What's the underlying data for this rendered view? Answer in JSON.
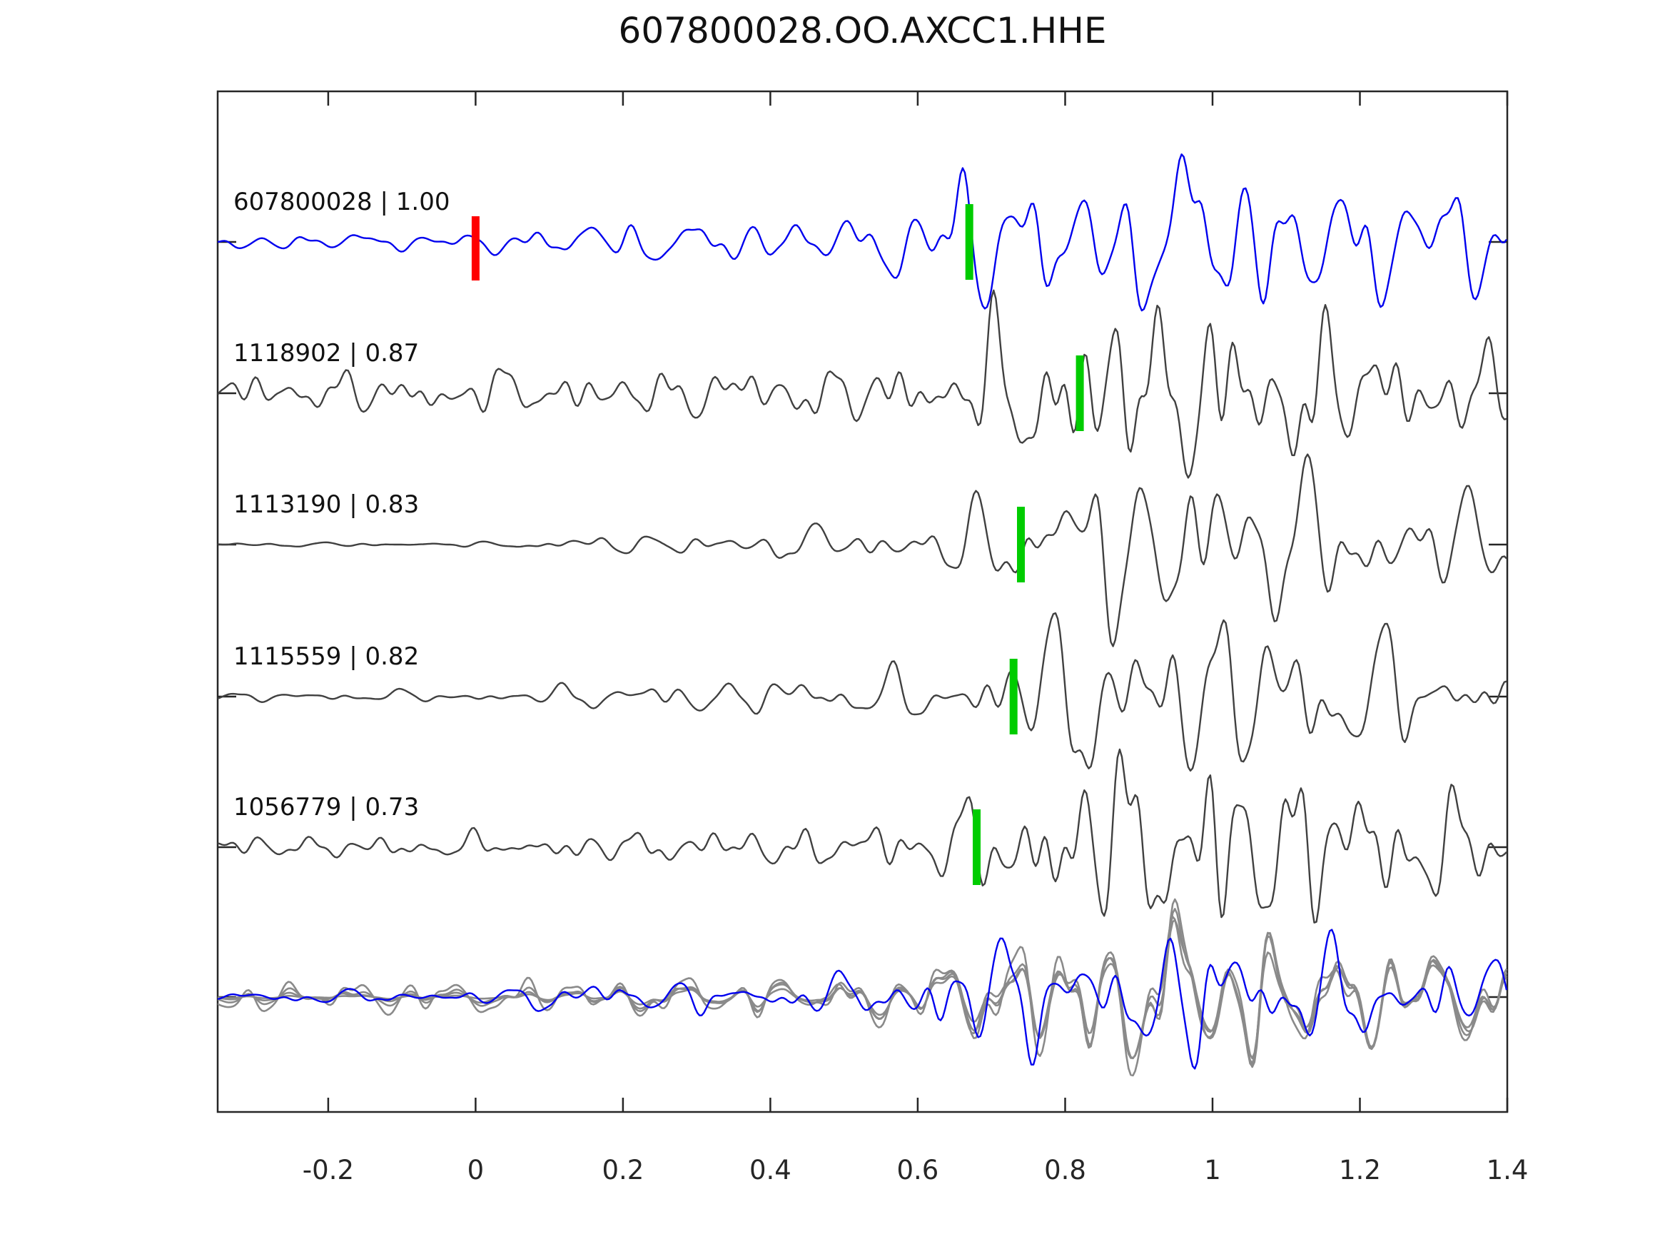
{
  "chart_data": {
    "type": "line",
    "title": "607800028.OO.AXCC1.HHE",
    "xlabel": "",
    "ylabel": "",
    "xlim": [
      -0.35,
      1.4
    ],
    "x_ticks": [
      -0.2,
      0,
      0.2,
      0.4,
      0.6,
      0.8,
      1,
      1.2,
      1.4
    ],
    "x_tick_labels": [
      "-0.2",
      "0",
      "0.2",
      "0.4",
      "0.6",
      "0.8",
      "1",
      "1.2",
      "1.4"
    ],
    "grid": false,
    "legend_position": "none",
    "axis_color": "#262626",
    "marker_colors": {
      "template_origin": "#ff0000",
      "pick": "#00cc00"
    },
    "traces": [
      {
        "id": "607800028",
        "label": "607800028 | 1.00",
        "correlation": 1.0,
        "color": "#0000ee",
        "row": 0,
        "seed": 20,
        "freq_profile": "signal",
        "origin_marker": {
          "x": 0.0,
          "color": "#ff0000"
        },
        "pick_marker": {
          "x": 0.67,
          "color": "#00cc00"
        },
        "envelope": [
          [
            -0.35,
            9
          ],
          [
            0,
            10
          ],
          [
            0.05,
            16
          ],
          [
            0.15,
            22
          ],
          [
            0.3,
            24
          ],
          [
            0.45,
            26
          ],
          [
            0.55,
            30
          ],
          [
            0.6,
            55
          ],
          [
            0.66,
            82
          ],
          [
            0.72,
            95
          ],
          [
            0.78,
            75
          ],
          [
            0.85,
            65
          ],
          [
            0.93,
            80
          ],
          [
            0.97,
            115
          ],
          [
            1.03,
            95
          ],
          [
            1.1,
            75
          ],
          [
            1.2,
            70
          ],
          [
            1.3,
            62
          ],
          [
            1.4,
            58
          ]
        ]
      },
      {
        "id": "1118902",
        "label": "1118902 | 0.87",
        "correlation": 0.87,
        "color": "#404040",
        "row": 1,
        "seed": 7,
        "freq_profile": "noisy",
        "pick_marker": {
          "x": 0.82,
          "color": "#00cc00"
        },
        "envelope": [
          [
            -0.35,
            20
          ],
          [
            0,
            22
          ],
          [
            0.2,
            24
          ],
          [
            0.4,
            26
          ],
          [
            0.55,
            30
          ],
          [
            0.65,
            50
          ],
          [
            0.72,
            75
          ],
          [
            0.8,
            92
          ],
          [
            0.9,
            95
          ],
          [
            1.0,
            90
          ],
          [
            1.1,
            85
          ],
          [
            1.2,
            60
          ],
          [
            1.3,
            50
          ],
          [
            1.4,
            42
          ]
        ]
      },
      {
        "id": "1113190",
        "label": "1113190 | 0.83",
        "correlation": 0.83,
        "color": "#404040",
        "row": 2,
        "seed": 13,
        "freq_profile": "signal",
        "pick_marker": {
          "x": 0.74,
          "color": "#00cc00"
        },
        "envelope": [
          [
            -0.35,
            2
          ],
          [
            0.05,
            3
          ],
          [
            0.12,
            8
          ],
          [
            0.25,
            12
          ],
          [
            0.4,
            16
          ],
          [
            0.55,
            22
          ],
          [
            0.65,
            40
          ],
          [
            0.72,
            55
          ],
          [
            0.8,
            80
          ],
          [
            0.9,
            100
          ],
          [
            1.0,
            105
          ],
          [
            1.1,
            85
          ],
          [
            1.2,
            70
          ],
          [
            1.3,
            55
          ],
          [
            1.4,
            48
          ]
        ]
      },
      {
        "id": "1115559",
        "label": "1115559 | 0.82",
        "correlation": 0.82,
        "color": "#404040",
        "row": 3,
        "seed": 5,
        "freq_profile": "signal",
        "pick_marker": {
          "x": 0.73,
          "color": "#00cc00"
        },
        "envelope": [
          [
            -0.35,
            5
          ],
          [
            0.05,
            7
          ],
          [
            0.15,
            14
          ],
          [
            0.3,
            18
          ],
          [
            0.45,
            22
          ],
          [
            0.6,
            30
          ],
          [
            0.7,
            50
          ],
          [
            0.78,
            82
          ],
          [
            0.88,
            95
          ],
          [
            1.0,
            100
          ],
          [
            1.1,
            88
          ],
          [
            1.2,
            70
          ],
          [
            1.3,
            55
          ],
          [
            1.4,
            48
          ]
        ]
      },
      {
        "id": "1056779",
        "label": "1056779 | 0.73",
        "correlation": 0.73,
        "color": "#404040",
        "row": 4,
        "seed": 29,
        "freq_profile": "noisy",
        "pick_marker": {
          "x": 0.68,
          "color": "#00cc00"
        },
        "envelope": [
          [
            -0.35,
            11
          ],
          [
            0.1,
            13
          ],
          [
            0.3,
            17
          ],
          [
            0.5,
            22
          ],
          [
            0.62,
            32
          ],
          [
            0.7,
            55
          ],
          [
            0.8,
            80
          ],
          [
            0.9,
            95
          ],
          [
            1.0,
            105
          ],
          [
            1.1,
            90
          ],
          [
            1.2,
            68
          ],
          [
            1.3,
            55
          ],
          [
            1.4,
            45
          ]
        ]
      }
    ],
    "overlay": {
      "row": 5,
      "gray_members": [
        "1118902",
        "1113190",
        "1115559",
        "1056779"
      ],
      "gray_color": "#8a8a8a",
      "blue_member": "607800028",
      "blue_color": "#0000ee",
      "seed": 41,
      "blue_seed": 97,
      "amp_scale": 0.9
    }
  }
}
